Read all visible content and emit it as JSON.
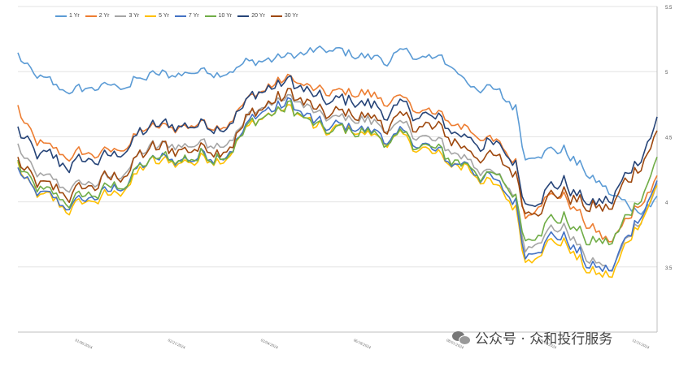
{
  "chart_data": {
    "type": "line",
    "title": "",
    "xlabel": "",
    "ylabel": "",
    "x_tick_labels": [
      "01/06/2024",
      "02/21/2024",
      "03/04/2024",
      "06/18/2024",
      "08/01/2024",
      "09/16/2024",
      "12/31/2024"
    ],
    "y_ticks": [
      3.5,
      4,
      4.5,
      5,
      5.5
    ],
    "ylim": [
      3.0,
      5.5
    ],
    "grid": true,
    "legend_position": "top-left",
    "n_points": 200,
    "series": [
      {
        "name": "1 Yr",
        "color": "#5b9bd5",
        "anchors": [
          [
            0,
            5.13
          ],
          [
            5,
            4.95
          ],
          [
            15,
            4.85
          ],
          [
            30,
            4.88
          ],
          [
            40,
            4.95
          ],
          [
            55,
            5.0
          ],
          [
            65,
            5.03
          ],
          [
            75,
            5.08
          ],
          [
            85,
            5.12
          ],
          [
            95,
            5.15
          ],
          [
            105,
            5.13
          ],
          [
            115,
            5.1
          ],
          [
            125,
            5.12
          ],
          [
            135,
            5.05
          ],
          [
            140,
            4.92
          ],
          [
            148,
            4.85
          ],
          [
            155,
            4.72
          ],
          [
            158,
            4.35
          ],
          [
            163,
            4.42
          ],
          [
            170,
            4.4
          ],
          [
            178,
            4.2
          ],
          [
            185,
            4.05
          ],
          [
            192,
            3.95
          ],
          [
            199,
            4.02
          ]
        ]
      },
      {
        "name": "2 Yr",
        "color": "#ed7d31",
        "anchors": [
          [
            0,
            4.72
          ],
          [
            5,
            4.45
          ],
          [
            15,
            4.35
          ],
          [
            30,
            4.38
          ],
          [
            40,
            4.55
          ],
          [
            55,
            4.6
          ],
          [
            65,
            4.62
          ],
          [
            75,
            4.85
          ],
          [
            85,
            4.95
          ],
          [
            95,
            4.82
          ],
          [
            105,
            4.85
          ],
          [
            115,
            4.78
          ],
          [
            125,
            4.72
          ],
          [
            135,
            4.6
          ],
          [
            140,
            4.58
          ],
          [
            148,
            4.45
          ],
          [
            155,
            4.3
          ],
          [
            158,
            3.9
          ],
          [
            163,
            4.05
          ],
          [
            170,
            4.05
          ],
          [
            178,
            3.8
          ],
          [
            185,
            3.68
          ],
          [
            192,
            3.95
          ],
          [
            199,
            4.18
          ]
        ]
      },
      {
        "name": "3 Yr",
        "color": "#a5a5a5",
        "anchors": [
          [
            0,
            4.42
          ],
          [
            5,
            4.2
          ],
          [
            15,
            4.1
          ],
          [
            30,
            4.18
          ],
          [
            40,
            4.4
          ],
          [
            55,
            4.45
          ],
          [
            65,
            4.48
          ],
          [
            75,
            4.72
          ],
          [
            85,
            4.8
          ],
          [
            95,
            4.62
          ],
          [
            105,
            4.65
          ],
          [
            115,
            4.58
          ],
          [
            125,
            4.52
          ],
          [
            135,
            4.38
          ],
          [
            140,
            4.35
          ],
          [
            148,
            4.2
          ],
          [
            155,
            4.05
          ],
          [
            158,
            3.65
          ],
          [
            163,
            3.78
          ],
          [
            170,
            3.8
          ],
          [
            178,
            3.55
          ],
          [
            185,
            3.48
          ],
          [
            192,
            3.82
          ],
          [
            199,
            4.12
          ]
        ]
      },
      {
        "name": "5 Yr",
        "color": "#ffc000",
        "anchors": [
          [
            0,
            4.28
          ],
          [
            5,
            4.05
          ],
          [
            15,
            3.95
          ],
          [
            30,
            4.05
          ],
          [
            40,
            4.28
          ],
          [
            55,
            4.32
          ],
          [
            65,
            4.38
          ],
          [
            75,
            4.65
          ],
          [
            85,
            4.72
          ],
          [
            95,
            4.52
          ],
          [
            105,
            4.55
          ],
          [
            115,
            4.48
          ],
          [
            125,
            4.42
          ],
          [
            135,
            4.28
          ],
          [
            140,
            4.28
          ],
          [
            148,
            4.12
          ],
          [
            155,
            3.95
          ],
          [
            158,
            3.55
          ],
          [
            163,
            3.68
          ],
          [
            170,
            3.7
          ],
          [
            178,
            3.45
          ],
          [
            185,
            3.42
          ],
          [
            192,
            3.8
          ],
          [
            199,
            4.12
          ]
        ]
      },
      {
        "name": "7 Yr",
        "color": "#4472c4",
        "anchors": [
          [
            0,
            4.25
          ],
          [
            5,
            4.05
          ],
          [
            15,
            3.97
          ],
          [
            30,
            4.08
          ],
          [
            40,
            4.3
          ],
          [
            55,
            4.35
          ],
          [
            65,
            4.4
          ],
          [
            75,
            4.68
          ],
          [
            85,
            4.75
          ],
          [
            95,
            4.55
          ],
          [
            105,
            4.58
          ],
          [
            115,
            4.5
          ],
          [
            125,
            4.45
          ],
          [
            135,
            4.3
          ],
          [
            140,
            4.3
          ],
          [
            148,
            4.15
          ],
          [
            155,
            4.0
          ],
          [
            158,
            3.6
          ],
          [
            163,
            3.72
          ],
          [
            170,
            3.74
          ],
          [
            178,
            3.5
          ],
          [
            185,
            3.47
          ],
          [
            192,
            3.85
          ],
          [
            199,
            4.15
          ]
        ]
      },
      {
        "name": "10 Yr",
        "color": "#70ad47",
        "anchors": [
          [
            0,
            4.3
          ],
          [
            5,
            4.08
          ],
          [
            15,
            4.0
          ],
          [
            30,
            4.1
          ],
          [
            40,
            4.3
          ],
          [
            55,
            4.35
          ],
          [
            65,
            4.4
          ],
          [
            75,
            4.65
          ],
          [
            85,
            4.72
          ],
          [
            95,
            4.52
          ],
          [
            105,
            4.55
          ],
          [
            115,
            4.48
          ],
          [
            125,
            4.45
          ],
          [
            135,
            4.32
          ],
          [
            140,
            4.3
          ],
          [
            148,
            4.18
          ],
          [
            155,
            4.05
          ],
          [
            158,
            3.72
          ],
          [
            163,
            3.85
          ],
          [
            170,
            3.88
          ],
          [
            178,
            3.68
          ],
          [
            185,
            3.68
          ],
          [
            192,
            3.98
          ],
          [
            199,
            4.32
          ]
        ]
      },
      {
        "name": "20 Yr",
        "color": "#264478",
        "anchors": [
          [
            0,
            4.55
          ],
          [
            5,
            4.35
          ],
          [
            15,
            4.28
          ],
          [
            30,
            4.35
          ],
          [
            40,
            4.55
          ],
          [
            55,
            4.6
          ],
          [
            65,
            4.62
          ],
          [
            75,
            4.85
          ],
          [
            85,
            4.92
          ],
          [
            95,
            4.75
          ],
          [
            105,
            4.78
          ],
          [
            115,
            4.7
          ],
          [
            125,
            4.68
          ],
          [
            135,
            4.55
          ],
          [
            140,
            4.52
          ],
          [
            148,
            4.42
          ],
          [
            155,
            4.3
          ],
          [
            158,
            4.0
          ],
          [
            163,
            4.1
          ],
          [
            170,
            4.15
          ],
          [
            178,
            3.98
          ],
          [
            185,
            4.0
          ],
          [
            192,
            4.3
          ],
          [
            199,
            4.62
          ]
        ]
      },
      {
        "name": "30 Yr",
        "color": "#9e480e",
        "anchors": [
          [
            0,
            4.32
          ],
          [
            5,
            4.12
          ],
          [
            15,
            4.05
          ],
          [
            30,
            4.18
          ],
          [
            40,
            4.38
          ],
          [
            55,
            4.42
          ],
          [
            65,
            4.45
          ],
          [
            75,
            4.72
          ],
          [
            85,
            4.82
          ],
          [
            95,
            4.65
          ],
          [
            105,
            4.68
          ],
          [
            115,
            4.6
          ],
          [
            125,
            4.6
          ],
          [
            135,
            4.48
          ],
          [
            140,
            4.42
          ],
          [
            148,
            4.32
          ],
          [
            155,
            4.22
          ],
          [
            158,
            3.95
          ],
          [
            163,
            4.02
          ],
          [
            170,
            4.08
          ],
          [
            178,
            3.95
          ],
          [
            185,
            3.95
          ],
          [
            192,
            4.25
          ],
          [
            199,
            4.52
          ]
        ]
      }
    ]
  },
  "watermark": {
    "text": "公众号 · 众和投行服务"
  }
}
